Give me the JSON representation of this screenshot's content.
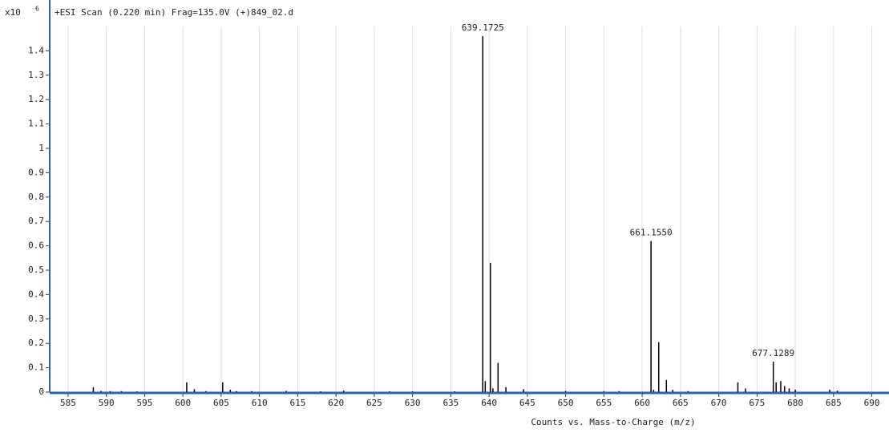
{
  "chart_data": {
    "type": "spectrum",
    "title": "+ESI Scan (0.220 min) Frag=135.0V (+)849_02.d",
    "x_label": "Counts vs. Mass-to-Charge (m/z)",
    "y_multiplier": {
      "base": "x10",
      "exponent": 6
    },
    "x": [
      588.3,
      589.3,
      590.5,
      592,
      594,
      600.5,
      601.5,
      603,
      605.2,
      606.2,
      607,
      609,
      613.5,
      618,
      621,
      627,
      630,
      635.5,
      639.1725,
      639.5,
      640.17,
      640.5,
      641.17,
      642.2,
      644.5,
      650,
      655,
      657,
      661.155,
      661.5,
      662.16,
      663.16,
      664,
      666,
      672.5,
      673.5,
      677.1289,
      677.5,
      678.1,
      678.6,
      679.2,
      680,
      684.5,
      685.5
    ],
    "values": [
      0.02,
      0.005,
      0.004,
      0.004,
      0.003,
      0.04,
      0.012,
      0.004,
      0.04,
      0.01,
      0.004,
      0.004,
      0.005,
      0.003,
      0.006,
      0.003,
      0.003,
      0.003,
      1.46,
      0.045,
      0.53,
      0.015,
      0.12,
      0.02,
      0.012,
      0.005,
      0.004,
      0.004,
      0.62,
      0.01,
      0.205,
      0.05,
      0.01,
      0.004,
      0.04,
      0.015,
      0.125,
      0.04,
      0.045,
      0.025,
      0.015,
      0.01,
      0.01,
      0.006
    ],
    "point_labels": [
      null,
      null,
      null,
      null,
      null,
      null,
      null,
      null,
      null,
      null,
      null,
      null,
      null,
      null,
      null,
      null,
      null,
      null,
      "639.1725",
      null,
      null,
      null,
      null,
      null,
      null,
      null,
      null,
      null,
      "661.1550",
      null,
      null,
      null,
      null,
      null,
      null,
      null,
      "677.1289",
      null,
      null,
      null,
      null,
      null,
      null,
      null
    ],
    "color": "#000000",
    "axis_color": "#2a62b8",
    "xlim": [
      582.6,
      691.3
    ],
    "ylim": [
      0,
      1.5
    ],
    "xticks": [
      585,
      590,
      595,
      600,
      605,
      610,
      615,
      620,
      625,
      630,
      635,
      640,
      645,
      650,
      655,
      660,
      665,
      670,
      675,
      680,
      685,
      690
    ],
    "yticks": [
      0,
      0.1,
      0.2,
      0.3,
      0.4,
      0.5,
      0.6,
      0.7,
      0.8,
      0.9,
      1,
      1.1,
      1.2,
      1.3,
      1.4
    ],
    "grid": true
  }
}
